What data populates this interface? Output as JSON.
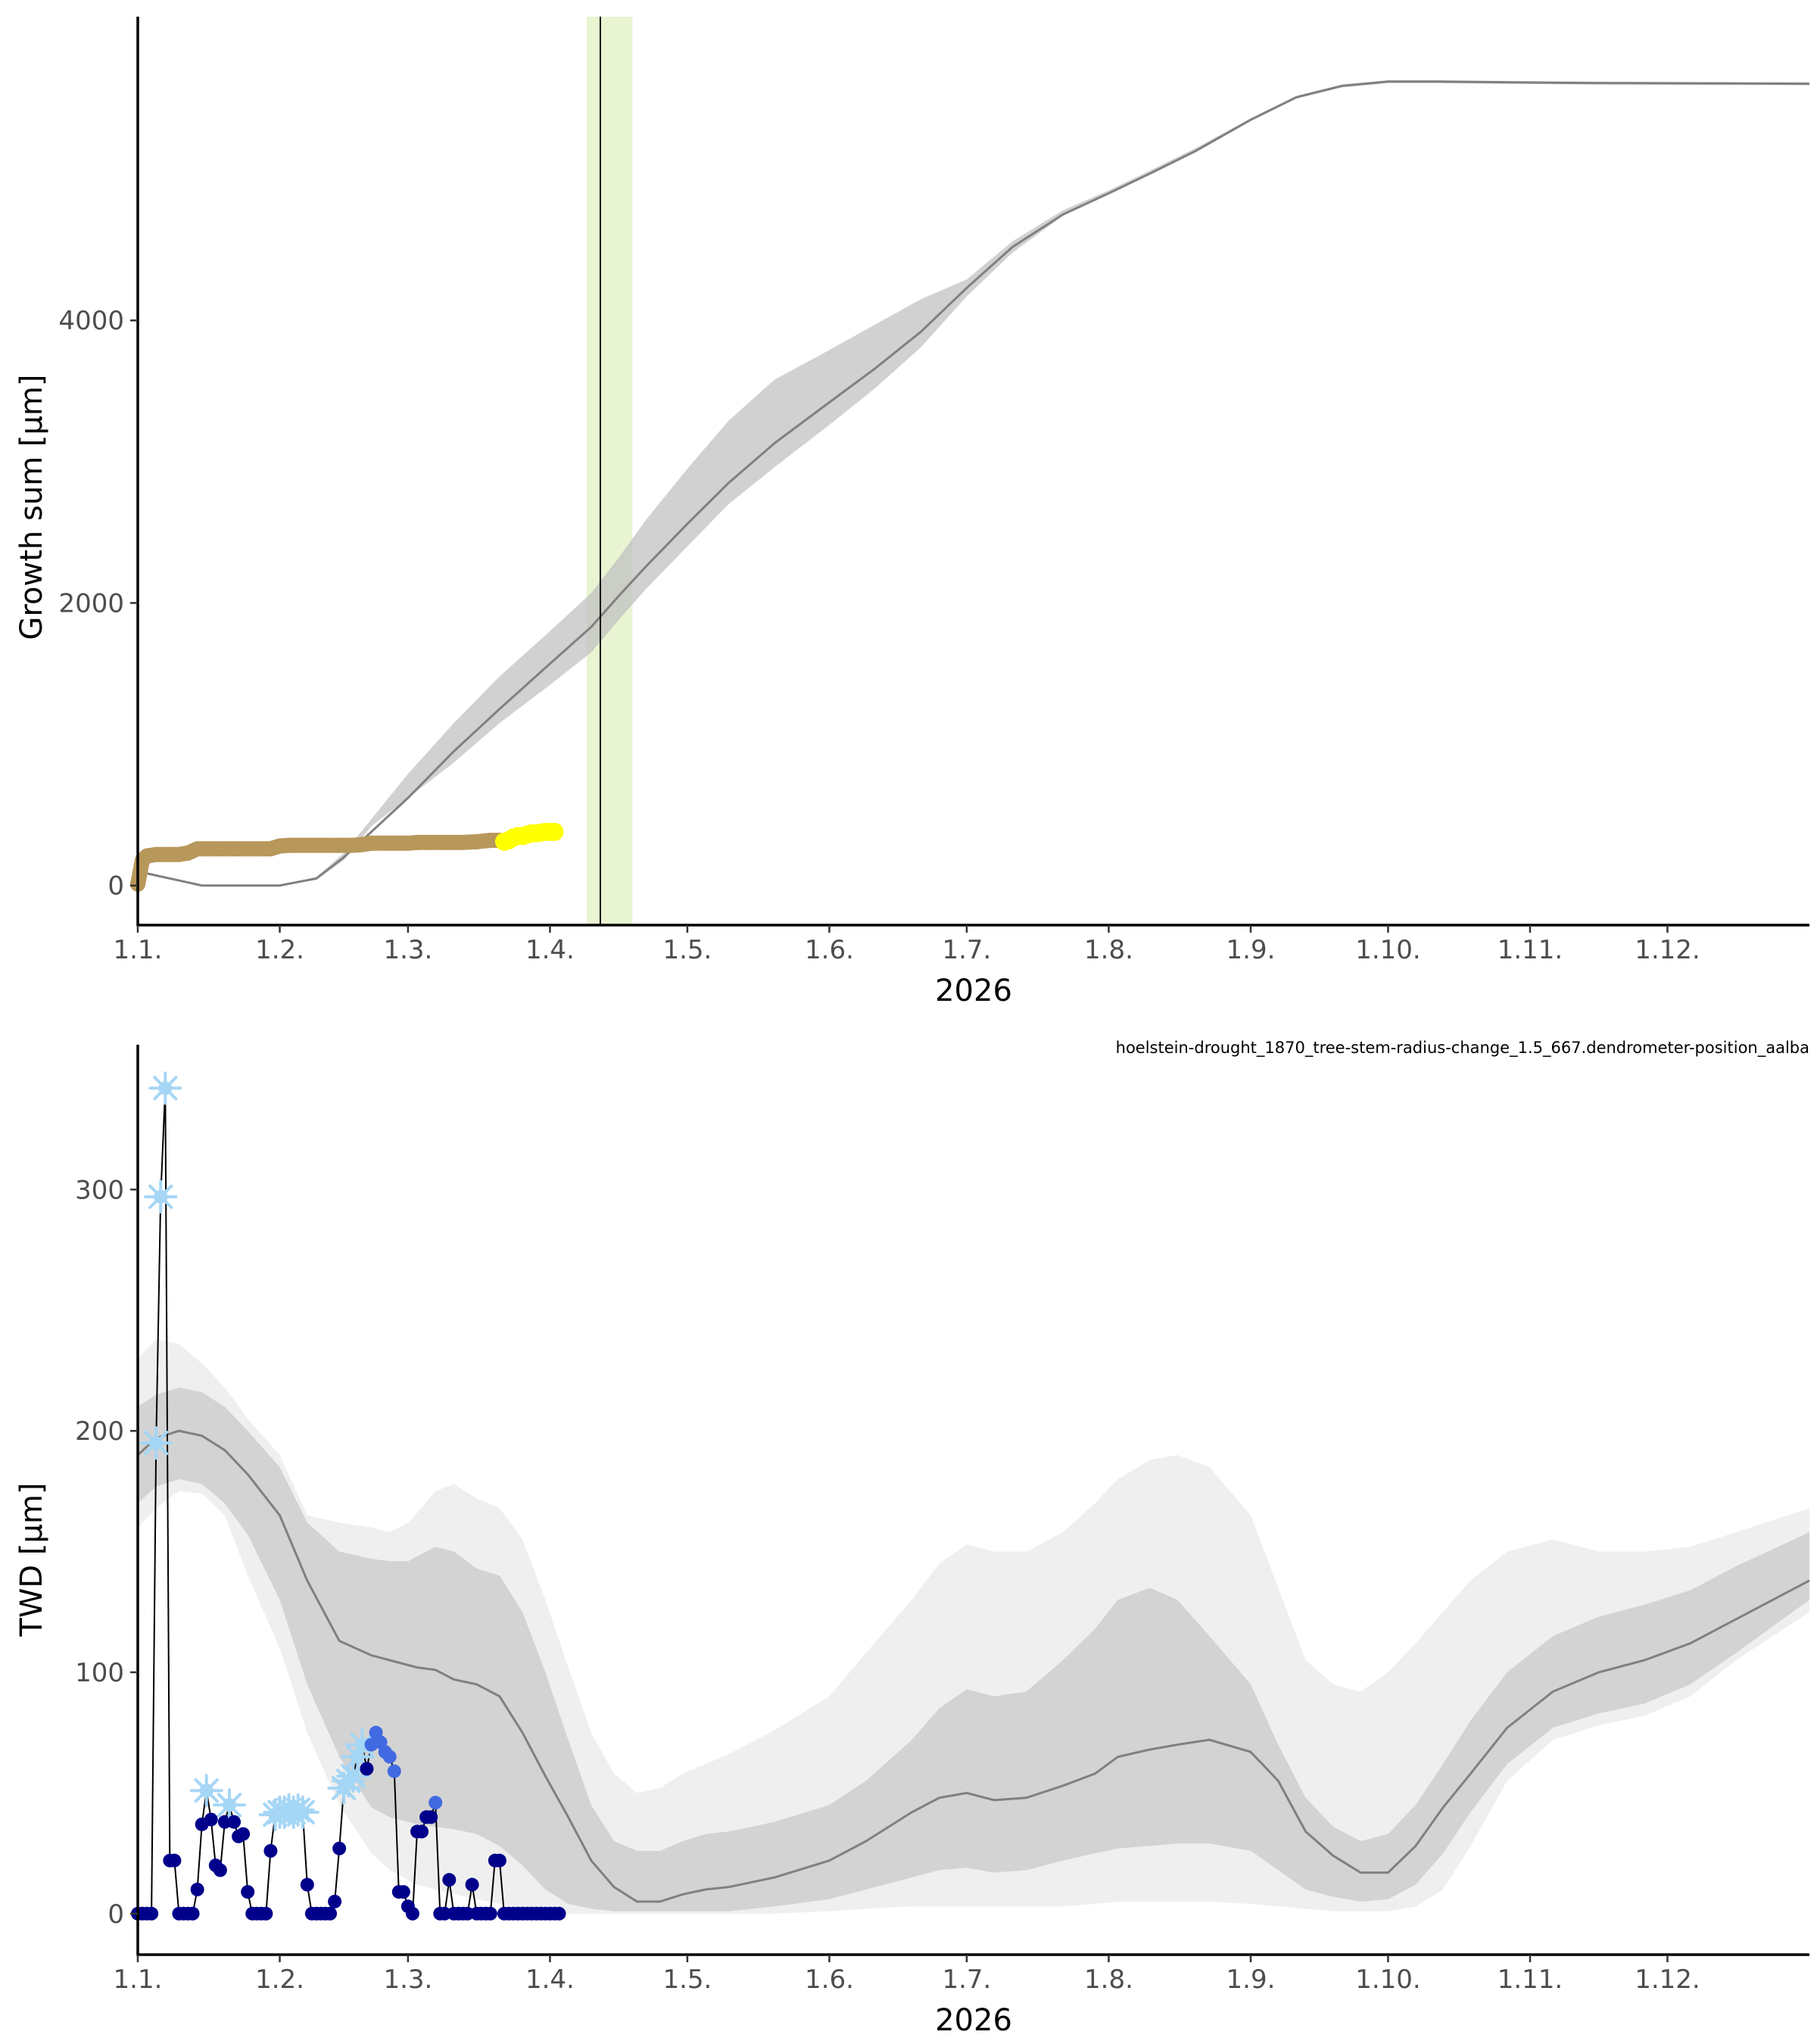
{
  "chart_data": [
    {
      "type": "line",
      "panel": "growth",
      "xlabel": "2026",
      "ylabel": "Growth sum [µm]",
      "x_ticks": [
        "1.1.",
        "1.2.",
        "1.3.",
        "1.4.",
        "1.5.",
        "1.6.",
        "1.7.",
        "1.8.",
        "1.9.",
        "1.10.",
        "1.11.",
        "1.12."
      ],
      "x_tick_days": [
        1,
        32,
        60,
        91,
        121,
        152,
        182,
        213,
        244,
        274,
        305,
        335
      ],
      "xlim_days": [
        1,
        366
      ],
      "y_ticks": [
        0,
        2000,
        4000
      ],
      "ylim": [
        -280,
        6150
      ],
      "grid": false,
      "colors": {
        "reference": "#808080",
        "band": "#bebebe",
        "observed": "#b8975a",
        "recent": "#ffff00",
        "today_band": "#dfefbf",
        "today_line": "#000000"
      },
      "today_marker": {
        "day": 102,
        "band": [
          99,
          109
        ]
      },
      "reference_x_days": [
        1,
        15,
        32,
        40,
        46,
        52,
        60,
        70,
        80,
        91,
        100,
        106,
        112,
        121,
        130,
        140,
        152,
        162,
        172,
        182,
        192,
        203,
        213,
        222,
        232,
        244,
        254,
        264,
        274,
        285,
        300,
        320,
        340,
        366
      ],
      "reference_mean": [
        100,
        0,
        0,
        50,
        200,
        380,
        620,
        950,
        1250,
        1570,
        1830,
        2050,
        2260,
        2560,
        2850,
        3130,
        3420,
        3660,
        3920,
        4230,
        4520,
        4750,
        4900,
        5040,
        5200,
        5420,
        5580,
        5660,
        5690,
        5690,
        5685,
        5680,
        5678,
        5675
      ],
      "reference_lower": [
        100,
        0,
        0,
        40,
        180,
        420,
        620,
        870,
        1150,
        1420,
        1650,
        1880,
        2100,
        2400,
        2700,
        2960,
        3260,
        3520,
        3810,
        4170,
        4480,
        4740,
        4890,
        5030,
        5190,
        5410,
        5570,
        5650,
        5680,
        5680,
        5675,
        5670,
        5668,
        5665
      ],
      "reference_upper": [
        100,
        0,
        0,
        60,
        230,
        470,
        790,
        1150,
        1480,
        1800,
        2070,
        2320,
        2590,
        2950,
        3290,
        3580,
        3790,
        3970,
        4150,
        4290,
        4560,
        4780,
        4920,
        5060,
        5220,
        5430,
        5590,
        5670,
        5700,
        5700,
        5695,
        5690,
        5688,
        5685
      ],
      "observed_x_days": [
        1,
        2,
        3,
        5,
        8,
        10,
        12,
        14,
        16,
        18,
        20,
        22,
        25,
        28,
        30,
        32,
        34,
        36,
        38,
        40,
        42,
        45,
        48,
        50,
        52,
        55,
        58,
        60,
        62,
        65,
        68,
        70,
        72,
        75,
        78,
        80
      ],
      "observed_values": [
        10,
        180,
        210,
        220,
        220,
        220,
        230,
        260,
        260,
        260,
        260,
        260,
        260,
        260,
        260,
        280,
        285,
        285,
        285,
        285,
        285,
        285,
        285,
        290,
        300,
        300,
        300,
        300,
        305,
        305,
        305,
        305,
        305,
        310,
        320,
        320
      ],
      "recent_x_days": [
        81,
        82,
        83,
        84,
        85,
        86,
        87,
        88,
        89,
        90,
        91,
        92
      ],
      "recent_values": [
        310,
        320,
        340,
        350,
        350,
        360,
        370,
        370,
        375,
        380,
        380,
        380
      ]
    },
    {
      "type": "line",
      "panel": "twd",
      "xlabel": "2026",
      "ylabel": "TWD [µm]",
      "subtitle": "hoelstein-drought_1870_tree-stem-radius-change_1.5_667.dendrometer-position_aalba",
      "x_ticks": [
        "1.1.",
        "1.2.",
        "1.3.",
        "1.4.",
        "1.5.",
        "1.6.",
        "1.7.",
        "1.8.",
        "1.9.",
        "1.10.",
        "1.11.",
        "1.12."
      ],
      "x_tick_days": [
        1,
        32,
        60,
        91,
        121,
        152,
        182,
        213,
        244,
        274,
        305,
        335
      ],
      "xlim_days": [
        1,
        366
      ],
      "y_ticks": [
        0,
        100,
        200,
        300
      ],
      "ylim": [
        -17,
        360
      ],
      "grid": false,
      "colors": {
        "median": "#808080",
        "inner_band": "#d3d3d3",
        "outer_band": "#efefef",
        "path": "#000000",
        "dot_normal": "#00008b",
        "dot_elevated": "#4169e1",
        "frost": "#a5d6f5"
      },
      "reference_x_days": [
        1,
        5,
        10,
        15,
        20,
        25,
        32,
        38,
        45,
        52,
        56,
        60,
        62,
        66,
        70,
        75,
        80,
        85,
        90,
        95,
        100,
        105,
        110,
        115,
        120,
        125,
        130,
        140,
        152,
        160,
        170,
        176,
        182,
        188,
        195,
        203,
        210,
        215,
        222,
        228,
        235,
        244,
        250,
        256,
        262,
        268,
        274,
        280,
        286,
        292,
        300,
        310,
        320,
        330,
        340,
        350,
        366
      ],
      "reference_median": [
        190,
        197,
        200,
        198,
        192,
        182,
        165,
        138,
        113,
        107,
        105,
        103,
        102,
        101,
        97,
        95,
        90,
        75,
        57,
        40,
        22,
        11,
        5,
        5,
        8,
        10,
        11,
        15,
        22,
        30,
        42,
        48,
        50,
        47,
        48,
        53,
        58,
        65,
        68,
        70,
        72,
        67,
        55,
        34,
        24,
        17,
        17,
        28,
        44,
        58,
        77,
        92,
        100,
        105,
        112,
        122,
        138
      ],
      "reference_inner_lower": [
        170,
        177,
        180,
        178,
        170,
        157,
        130,
        95,
        65,
        44,
        40,
        38,
        37,
        36,
        35,
        33,
        28,
        20,
        10,
        4,
        2,
        1,
        1,
        1,
        1,
        1,
        1,
        3,
        6,
        10,
        15,
        18,
        19,
        17,
        18,
        22,
        25,
        27,
        28,
        29,
        29,
        26,
        18,
        10,
        7,
        5,
        6,
        12,
        25,
        42,
        62,
        77,
        83,
        87,
        95,
        108,
        130
      ],
      "reference_inner_upper": [
        210,
        215,
        218,
        216,
        210,
        200,
        185,
        162,
        150,
        147,
        146,
        146,
        148,
        152,
        150,
        143,
        140,
        125,
        100,
        72,
        45,
        30,
        26,
        26,
        30,
        33,
        34,
        38,
        45,
        55,
        72,
        85,
        93,
        90,
        92,
        105,
        118,
        130,
        135,
        130,
        115,
        95,
        70,
        48,
        36,
        30,
        33,
        45,
        62,
        80,
        100,
        115,
        123,
        128,
        134,
        144,
        158
      ],
      "reference_outer_lower": [
        160,
        168,
        175,
        174,
        165,
        140,
        110,
        75,
        45,
        25,
        18,
        14,
        12,
        10,
        8,
        6,
        4,
        2,
        1,
        0,
        0,
        0,
        0,
        0,
        0,
        0,
        0,
        0,
        1,
        2,
        3,
        3,
        3,
        3,
        3,
        3,
        4,
        5,
        5,
        5,
        5,
        4,
        3,
        2,
        1,
        1,
        1,
        3,
        10,
        28,
        55,
        72,
        78,
        82,
        90,
        105,
        125
      ],
      "reference_outer_upper": [
        230,
        238,
        236,
        228,
        218,
        205,
        190,
        165,
        162,
        160,
        158,
        162,
        166,
        175,
        178,
        172,
        168,
        155,
        130,
        102,
        75,
        58,
        50,
        52,
        58,
        62,
        66,
        76,
        90,
        108,
        130,
        145,
        153,
        150,
        150,
        158,
        170,
        180,
        188,
        190,
        185,
        165,
        135,
        105,
        95,
        92,
        100,
        112,
        125,
        138,
        150,
        155,
        150,
        150,
        152,
        158,
        168
      ],
      "observed_x_days": [
        1,
        2,
        3,
        4,
        5,
        6,
        7,
        8,
        9,
        10,
        11,
        12,
        13,
        14,
        15,
        16,
        17,
        18,
        19,
        20,
        21,
        22,
        23,
        24,
        25,
        26,
        27,
        28,
        29,
        30,
        31,
        32,
        33,
        34,
        35,
        36,
        37,
        38,
        39,
        40,
        41,
        42,
        43,
        44,
        45,
        46,
        47,
        48,
        49,
        50,
        51,
        52,
        53,
        54,
        55,
        56,
        57,
        58,
        59,
        60,
        61,
        62,
        63,
        64,
        65,
        66,
        67,
        68,
        69,
        70,
        71,
        72,
        73,
        74,
        75,
        76,
        77,
        78,
        79,
        80,
        81,
        82,
        83,
        84,
        85,
        86,
        87,
        88,
        89,
        90,
        91,
        92,
        93
      ],
      "observed_values": [
        0,
        0,
        0,
        0,
        195,
        297,
        342,
        22,
        22,
        0,
        0,
        0,
        0,
        10,
        37,
        51,
        39,
        20,
        18,
        38,
        45,
        38,
        32,
        33,
        9,
        0,
        0,
        0,
        0,
        26,
        41,
        42,
        42,
        43,
        42,
        43,
        42,
        12,
        0,
        0,
        0,
        0,
        0,
        5,
        27,
        52,
        55,
        57,
        65,
        70,
        60,
        70,
        75,
        71,
        67,
        65,
        59,
        9,
        9,
        3,
        0,
        34,
        34,
        40,
        40,
        46,
        0,
        0,
        14,
        0,
        0,
        0,
        0,
        12,
        0,
        0,
        0,
        0,
        22,
        22,
        0,
        0,
        0,
        0,
        0,
        0,
        0,
        0,
        0,
        0,
        0,
        0,
        0
      ],
      "observed_state": [
        "n",
        "n",
        "n",
        "n",
        "f",
        "f",
        "f",
        "n",
        "n",
        "n",
        "n",
        "n",
        "n",
        "n",
        "n",
        "f",
        "n",
        "n",
        "n",
        "n",
        "f",
        "n",
        "n",
        "n",
        "n",
        "n",
        "n",
        "n",
        "n",
        "n",
        "f",
        "f",
        "f",
        "f",
        "f",
        "f",
        "f",
        "n",
        "n",
        "n",
        "n",
        "n",
        "n",
        "n",
        "n",
        "f",
        "f",
        "f",
        "f",
        "f",
        "n",
        "e",
        "e",
        "e",
        "e",
        "e",
        "e",
        "n",
        "n",
        "n",
        "n",
        "n",
        "n",
        "n",
        "n",
        "e",
        "n",
        "n",
        "n",
        "n",
        "n",
        "n",
        "n",
        "n",
        "n",
        "n",
        "n",
        "n",
        "n",
        "n",
        "n",
        "n",
        "n",
        "n",
        "n",
        "n",
        "n",
        "n",
        "n",
        "n",
        "n",
        "n",
        "n"
      ]
    }
  ]
}
